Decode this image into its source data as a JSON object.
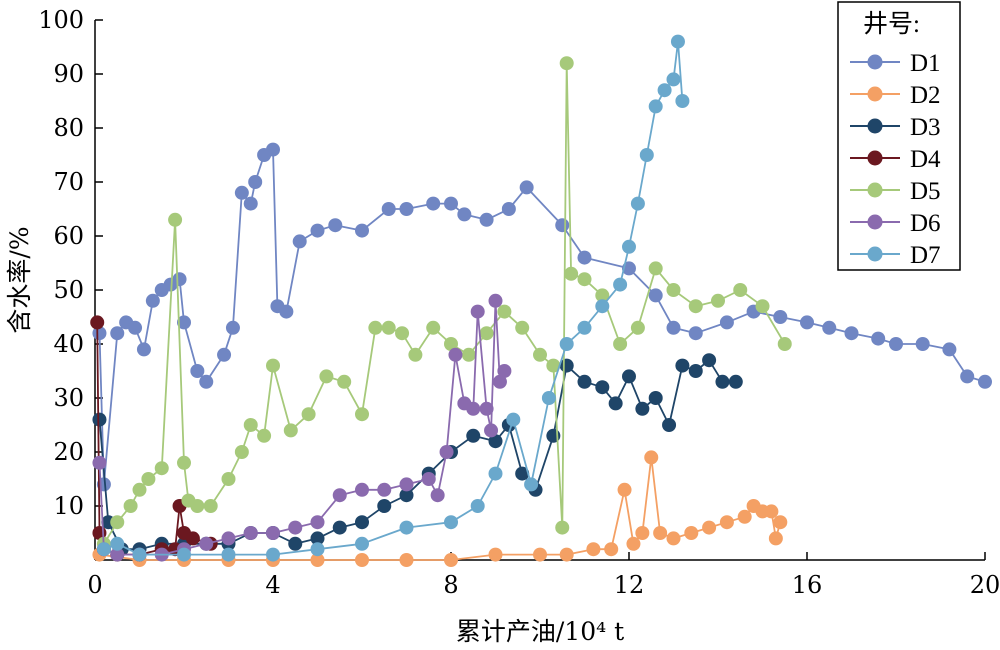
{
  "chart_data": {
    "type": "line",
    "xlabel": "累计产油/10⁴ t",
    "ylabel": "含水率/%",
    "xlim": [
      0,
      20
    ],
    "ylim": [
      0,
      100
    ],
    "x_ticks": [
      "0",
      "4",
      "8",
      "12",
      "16",
      "20"
    ],
    "x_tick_values": [
      0,
      4,
      8,
      12,
      16,
      20
    ],
    "y_ticks": [
      "10",
      "20",
      "30",
      "40",
      "50",
      "60",
      "70",
      "80",
      "90",
      "100"
    ],
    "y_tick_values": [
      10,
      20,
      30,
      40,
      50,
      60,
      70,
      80,
      90,
      100
    ],
    "grid": false,
    "legend": {
      "title": "井号:",
      "position": "top-right"
    },
    "series": [
      {
        "name": "D1",
        "color": "#7086C3",
        "x": [
          0.1,
          0.2,
          0.5,
          0.7,
          0.9,
          1.1,
          1.3,
          1.5,
          1.7,
          1.9,
          2.0,
          2.3,
          2.5,
          2.9,
          3.1,
          3.3,
          3.5,
          3.6,
          3.8,
          4.0,
          4.1,
          4.3,
          4.6,
          5.0,
          5.4,
          6.0,
          6.6,
          7.0,
          7.6,
          8.0,
          8.3,
          8.8,
          9.3,
          9.7,
          10.5,
          11.0,
          12.0,
          12.6,
          13.0,
          13.5,
          14.2,
          14.8,
          15.4,
          16.0,
          16.5,
          17.0,
          17.6,
          18.0,
          18.6,
          19.2,
          19.6,
          20.0
        ],
        "y": [
          42,
          14,
          42,
          44,
          43,
          39,
          48,
          50,
          51,
          52,
          44,
          35,
          33,
          38,
          43,
          68,
          66,
          70,
          75,
          76,
          47,
          46,
          59,
          61,
          62,
          61,
          65,
          65,
          66,
          66,
          64,
          63,
          65,
          69,
          62,
          56,
          54,
          49,
          43,
          42,
          44,
          46,
          45,
          44,
          43,
          42,
          41,
          40,
          40,
          39,
          34,
          33
        ]
      },
      {
        "name": "D2",
        "color": "#F4A064",
        "x": [
          0.1,
          1.0,
          2.0,
          3.0,
          4.0,
          5.0,
          6.0,
          7.0,
          8.0,
          9.0,
          10.0,
          10.6,
          11.2,
          11.6,
          11.9,
          12.1,
          12.3,
          12.5,
          12.7,
          13.0,
          13.4,
          13.8,
          14.2,
          14.6,
          14.8,
          15.0,
          15.2,
          15.3,
          15.4
        ],
        "y": [
          1,
          0,
          0,
          0,
          0,
          0,
          0,
          0,
          0,
          1,
          1,
          1,
          2,
          2,
          13,
          3,
          5,
          19,
          5,
          4,
          5,
          6,
          7,
          8,
          10,
          9,
          9,
          4,
          7
        ]
      },
      {
        "name": "D3",
        "color": "#1F4568",
        "x": [
          0.1,
          0.3,
          0.6,
          1.0,
          1.5,
          2.0,
          2.5,
          3.0,
          3.5,
          4.0,
          4.5,
          5.0,
          5.5,
          6.0,
          6.5,
          7.0,
          7.5,
          8.0,
          8.5,
          9.0,
          9.3,
          9.6,
          9.9,
          10.3,
          10.6,
          11.0,
          11.4,
          11.7,
          12.0,
          12.3,
          12.6,
          12.9,
          13.2,
          13.5,
          13.8,
          14.1,
          14.4
        ],
        "y": [
          26,
          7,
          2,
          2,
          3,
          3,
          3,
          3,
          5,
          5,
          3,
          4,
          6,
          7,
          10,
          12,
          16,
          20,
          23,
          22,
          25,
          16,
          13,
          23,
          36,
          33,
          32,
          29,
          34,
          28,
          30,
          25,
          36,
          35,
          37,
          33,
          33
        ]
      },
      {
        "name": "D4",
        "color": "#6B1820",
        "x": [
          0.05,
          0.1,
          0.2,
          0.5,
          1.0,
          1.5,
          1.8,
          1.9,
          2.0,
          2.2,
          2.6
        ],
        "y": [
          44,
          5,
          2,
          1,
          1,
          2,
          2,
          10,
          5,
          4,
          3
        ]
      },
      {
        "name": "D5",
        "color": "#A6C97A",
        "x": [
          0.2,
          0.5,
          0.8,
          1.0,
          1.2,
          1.5,
          1.8,
          2.0,
          2.1,
          2.3,
          2.6,
          3.0,
          3.3,
          3.5,
          3.8,
          4.0,
          4.4,
          4.8,
          5.2,
          5.6,
          6.0,
          6.3,
          6.6,
          6.9,
          7.2,
          7.6,
          8.0,
          8.4,
          8.8,
          9.2,
          9.6,
          10.0,
          10.3,
          10.5,
          10.6,
          10.7,
          11.0,
          11.4,
          11.8,
          12.2,
          12.6,
          13.0,
          13.5,
          14.0,
          14.5,
          15.0,
          15.5
        ],
        "y": [
          3,
          7,
          10,
          13,
          15,
          17,
          63,
          18,
          11,
          10,
          10,
          15,
          20,
          25,
          23,
          36,
          24,
          27,
          34,
          33,
          27,
          43,
          43,
          42,
          38,
          43,
          40,
          38,
          42,
          46,
          43,
          38,
          36,
          6,
          92,
          53,
          52,
          49,
          40,
          43,
          54,
          50,
          47,
          48,
          50,
          47,
          40
        ]
      },
      {
        "name": "D6",
        "color": "#8A6AAE",
        "x": [
          0.1,
          0.2,
          0.5,
          1.0,
          1.5,
          2.0,
          2.5,
          3.0,
          3.5,
          4.0,
          4.5,
          5.0,
          5.5,
          6.0,
          6.5,
          7.0,
          7.5,
          7.7,
          7.9,
          8.1,
          8.3,
          8.5,
          8.6,
          8.8,
          8.9,
          9.0,
          9.1,
          9.2
        ],
        "y": [
          18,
          2,
          1,
          1,
          1,
          2,
          3,
          4,
          5,
          5,
          6,
          7,
          12,
          13,
          13,
          14,
          15,
          12,
          20,
          38,
          29,
          28,
          46,
          28,
          24,
          48,
          33,
          35
        ]
      },
      {
        "name": "D7",
        "color": "#6AA8CC",
        "x": [
          0.2,
          0.5,
          1.0,
          2.0,
          3.0,
          4.0,
          5.0,
          6.0,
          7.0,
          8.0,
          8.6,
          9.0,
          9.4,
          9.8,
          10.2,
          10.6,
          11.0,
          11.4,
          11.8,
          12.0,
          12.2,
          12.4,
          12.6,
          12.8,
          13.0,
          13.1,
          13.2
        ],
        "y": [
          2,
          3,
          1,
          1,
          1,
          1,
          2,
          3,
          6,
          7,
          10,
          16,
          26,
          14,
          30,
          40,
          43,
          47,
          51,
          58,
          66,
          75,
          84,
          87,
          89,
          96,
          85
        ]
      }
    ]
  }
}
